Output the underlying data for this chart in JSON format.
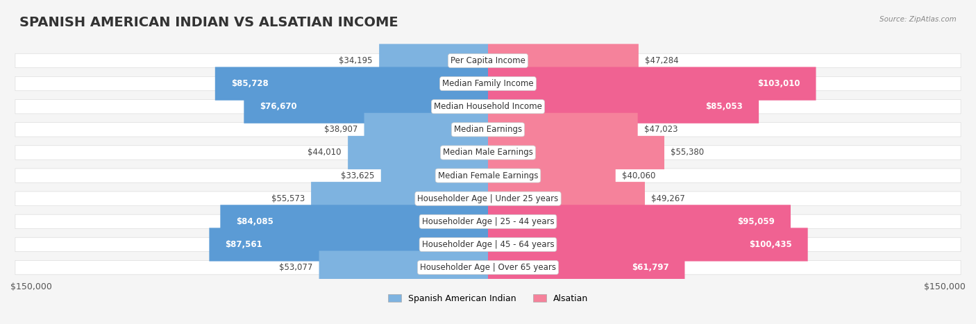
{
  "title": "SPANISH AMERICAN INDIAN VS ALSATIAN INCOME",
  "source": "Source: ZipAtlas.com",
  "categories": [
    "Per Capita Income",
    "Median Family Income",
    "Median Household Income",
    "Median Earnings",
    "Median Male Earnings",
    "Median Female Earnings",
    "Householder Age | Under 25 years",
    "Householder Age | 25 - 44 years",
    "Householder Age | 45 - 64 years",
    "Householder Age | Over 65 years"
  ],
  "left_values": [
    34195,
    85728,
    76670,
    38907,
    44010,
    33625,
    55573,
    84085,
    87561,
    53077
  ],
  "right_values": [
    47284,
    103010,
    85053,
    47023,
    55380,
    40060,
    49267,
    95059,
    100435,
    61797
  ],
  "left_labels": [
    "$34,195",
    "$85,728",
    "$76,670",
    "$38,907",
    "$44,010",
    "$33,625",
    "$55,573",
    "$84,085",
    "$87,561",
    "$53,077"
  ],
  "right_labels": [
    "$47,284",
    "$103,010",
    "$85,053",
    "$47,023",
    "$55,380",
    "$40,060",
    "$49,267",
    "$95,059",
    "$100,435",
    "$61,797"
  ],
  "left_color": "#7EB3E0",
  "right_color": "#F5829B",
  "left_color_strong": "#5B9BD5",
  "right_color_strong": "#F06292",
  "max_value": 150000,
  "x_tick_label_left": "$150,000",
  "x_tick_label_right": "$150,000",
  "legend_left": "Spanish American Indian",
  "legend_right": "Alsatian",
  "background_color": "#f5f5f5",
  "row_background": "#ffffff",
  "row_background_alt": "#f0f0f0",
  "title_fontsize": 14,
  "label_fontsize": 8.5,
  "category_fontsize": 8.5
}
